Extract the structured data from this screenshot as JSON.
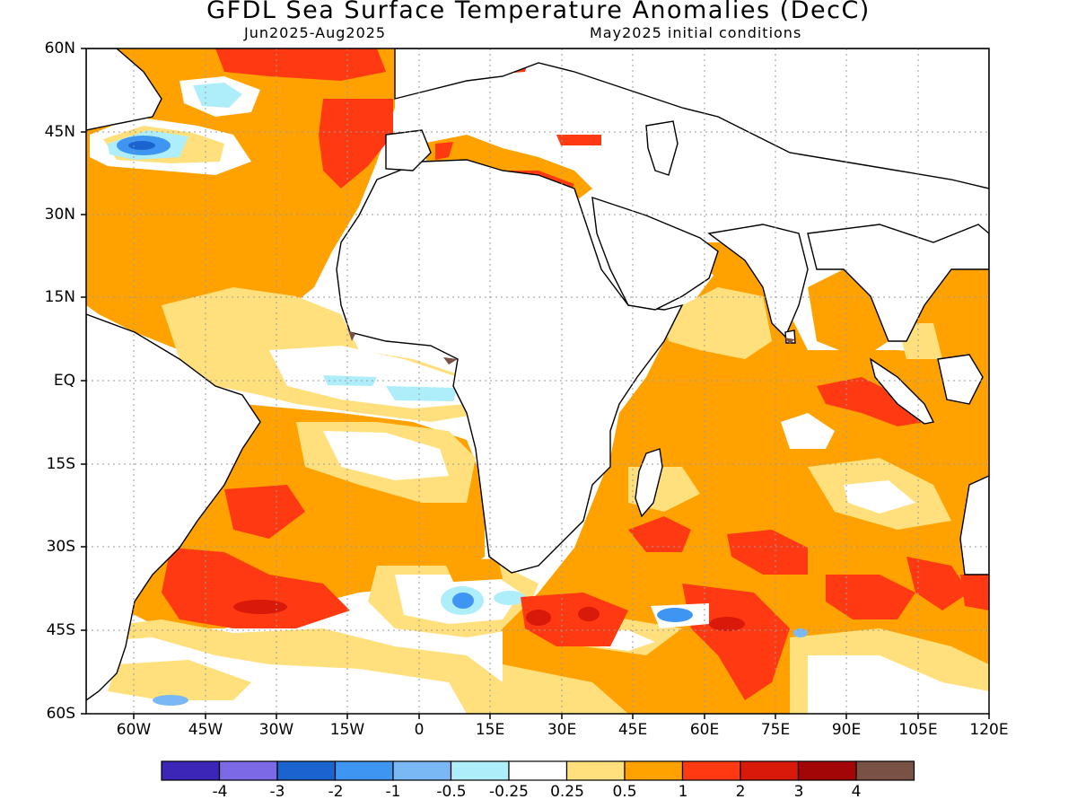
{
  "title": "GFDL Sea Surface Temperature Anomalies (DecC)",
  "period": "Jun2025-Aug2025",
  "init": "May2025 initial conditions",
  "lat_labels": [
    "60N",
    "45N",
    "30N",
    "15N",
    "EQ",
    "15S",
    "30S",
    "45S",
    "60S"
  ],
  "lon_labels": [
    "60W",
    "45W",
    "30W",
    "15W",
    "0",
    "15E",
    "30E",
    "45E",
    "60E",
    "75E",
    "90E",
    "105E",
    "120E"
  ],
  "colorbar": {
    "labels": [
      "-4",
      "-3",
      "-2",
      "-1",
      "-0.5",
      "-0.25",
      "0.25",
      "0.5",
      "1",
      "2",
      "3",
      "4"
    ],
    "colors": [
      "#3b26b8",
      "#7b69e6",
      "#1b63cf",
      "#3e96f2",
      "#7ab8f5",
      "#aeeefa",
      "#ffffff",
      "#ffe07d",
      "#ffa200",
      "#ff3a12",
      "#d91a0a",
      "#a30606",
      "#7a5245"
    ]
  },
  "map": {
    "region": "Atlantic and Indian Oceans",
    "lat_range": [
      "60S",
      "60N"
    ],
    "lon_range": [
      "70W",
      "120E"
    ],
    "grid": "dotted"
  }
}
